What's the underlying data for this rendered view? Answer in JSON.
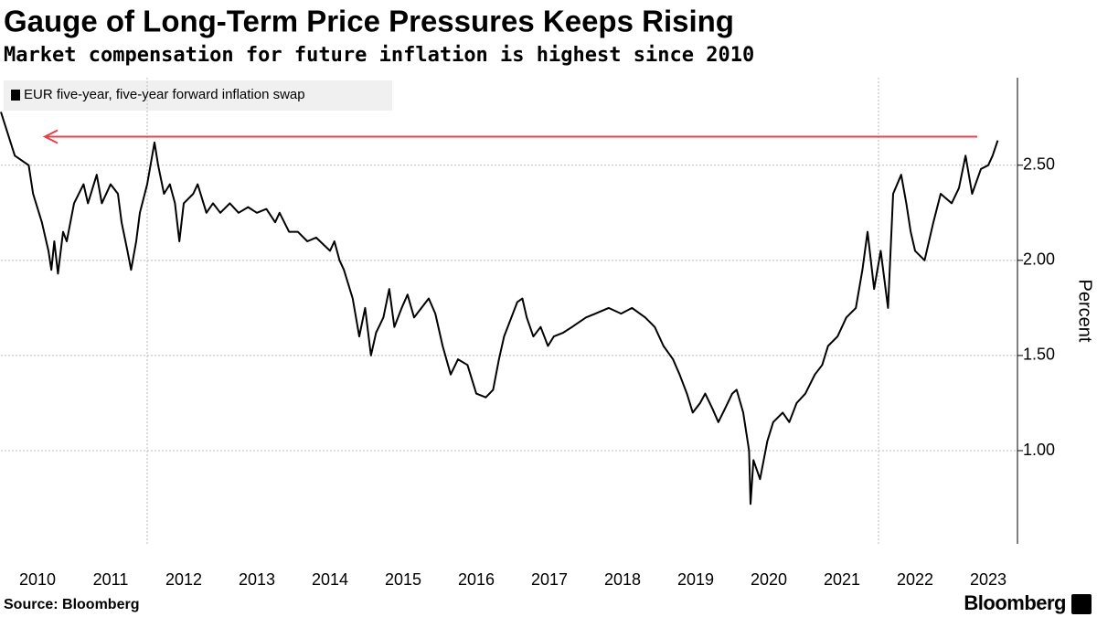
{
  "chart_data": {
    "type": "line",
    "title": "Gauge of Long-Term Price Pressures Keeps Rising",
    "subtitle": "Market compensation for future inflation is highest since 2010",
    "y_axis_label": "Percent",
    "source": "Source: Bloomberg",
    "brand": "Bloomberg",
    "x": [
      2010.0,
      2010.19,
      2010.38,
      2010.44,
      2010.56,
      2010.65,
      2010.69,
      2010.73,
      2010.78,
      2010.85,
      2010.9,
      2011.0,
      2011.13,
      2011.19,
      2011.31,
      2011.38,
      2011.5,
      2011.6,
      2011.65,
      2011.73,
      2011.78,
      2011.85,
      2011.9,
      2012.0,
      2012.1,
      2012.15,
      2012.23,
      2012.31,
      2012.38,
      2012.44,
      2012.5,
      2012.63,
      2012.69,
      2012.81,
      2012.9,
      2013.0,
      2013.13,
      2013.25,
      2013.38,
      2013.5,
      2013.63,
      2013.75,
      2013.81,
      2013.94,
      2014.06,
      2014.19,
      2014.31,
      2014.5,
      2014.56,
      2014.63,
      2014.69,
      2014.81,
      2014.9,
      2014.98,
      2015.06,
      2015.13,
      2015.23,
      2015.31,
      2015.38,
      2015.48,
      2015.56,
      2015.65,
      2015.75,
      2015.85,
      2015.94,
      2016.04,
      2016.15,
      2016.25,
      2016.38,
      2016.5,
      2016.63,
      2016.73,
      2016.81,
      2016.88,
      2016.98,
      2017.06,
      2017.13,
      2017.19,
      2017.28,
      2017.38,
      2017.48,
      2017.56,
      2017.69,
      2017.81,
      2018.0,
      2018.13,
      2018.31,
      2018.48,
      2018.63,
      2018.81,
      2018.94,
      2019.06,
      2019.19,
      2019.28,
      2019.38,
      2019.46,
      2019.56,
      2019.63,
      2019.73,
      2019.81,
      2019.9,
      2020.0,
      2020.06,
      2020.15,
      2020.23,
      2020.25,
      2020.29,
      2020.38,
      2020.48,
      2020.56,
      2020.69,
      2020.78,
      2020.88,
      2021.0,
      2021.13,
      2021.23,
      2021.31,
      2021.44,
      2021.56,
      2021.69,
      2021.78,
      2021.85,
      2021.94,
      2022.03,
      2022.13,
      2022.2,
      2022.31,
      2022.38,
      2022.44,
      2022.5,
      2022.63,
      2022.75,
      2022.85,
      2023.0,
      2023.1,
      2023.19,
      2023.28,
      2023.4,
      2023.5,
      2023.56,
      2023.63
    ],
    "series": [
      {
        "name": "EUR five-year, five-year forward inflation swap",
        "color": "#000000",
        "values": [
          2.78,
          2.55,
          2.5,
          2.35,
          2.2,
          2.05,
          1.95,
          2.1,
          1.93,
          2.15,
          2.1,
          2.3,
          2.4,
          2.3,
          2.45,
          2.3,
          2.4,
          2.35,
          2.2,
          2.05,
          1.95,
          2.1,
          2.25,
          2.4,
          2.62,
          2.5,
          2.35,
          2.4,
          2.3,
          2.1,
          2.3,
          2.35,
          2.4,
          2.25,
          2.3,
          2.25,
          2.3,
          2.25,
          2.28,
          2.25,
          2.27,
          2.2,
          2.25,
          2.15,
          2.15,
          2.1,
          2.12,
          2.05,
          2.1,
          2.0,
          1.95,
          1.8,
          1.6,
          1.75,
          1.5,
          1.62,
          1.7,
          1.85,
          1.65,
          1.75,
          1.82,
          1.7,
          1.75,
          1.8,
          1.72,
          1.55,
          1.4,
          1.48,
          1.45,
          1.3,
          1.28,
          1.32,
          1.48,
          1.6,
          1.7,
          1.78,
          1.8,
          1.7,
          1.6,
          1.65,
          1.55,
          1.6,
          1.62,
          1.65,
          1.7,
          1.72,
          1.75,
          1.72,
          1.75,
          1.7,
          1.65,
          1.55,
          1.48,
          1.4,
          1.3,
          1.2,
          1.25,
          1.3,
          1.22,
          1.15,
          1.22,
          1.3,
          1.32,
          1.2,
          1.0,
          0.72,
          0.95,
          0.85,
          1.05,
          1.15,
          1.2,
          1.15,
          1.25,
          1.3,
          1.4,
          1.45,
          1.55,
          1.6,
          1.7,
          1.75,
          1.95,
          2.15,
          1.85,
          2.05,
          1.75,
          2.35,
          2.45,
          2.3,
          2.15,
          2.05,
          2.0,
          2.2,
          2.35,
          2.3,
          2.38,
          2.55,
          2.35,
          2.48,
          2.5,
          2.55,
          2.63
        ]
      }
    ],
    "xlim": [
      2010,
      2023.9
    ],
    "xticks": [
      {
        "value": 2010.5,
        "label": "2010"
      },
      {
        "value": 2011.5,
        "label": "2011"
      },
      {
        "value": 2012.5,
        "label": "2012"
      },
      {
        "value": 2013.5,
        "label": "2013"
      },
      {
        "value": 2014.5,
        "label": "2014"
      },
      {
        "value": 2015.5,
        "label": "2015"
      },
      {
        "value": 2016.5,
        "label": "2016"
      },
      {
        "value": 2017.5,
        "label": "2017"
      },
      {
        "value": 2018.5,
        "label": "2018"
      },
      {
        "value": 2019.5,
        "label": "2019"
      },
      {
        "value": 2020.5,
        "label": "2020"
      },
      {
        "value": 2021.5,
        "label": "2021"
      },
      {
        "value": 2022.5,
        "label": "2022"
      },
      {
        "value": 2023.5,
        "label": "2023"
      }
    ],
    "x_grid_lines": [
      2012,
      2022
    ],
    "ylim": [
      0.51,
      2.96
    ],
    "yticks": [
      {
        "value": 1,
        "label": "1.00"
      },
      {
        "value": 1.5,
        "label": "1.50"
      },
      {
        "value": 2,
        "label": "2.00"
      },
      {
        "value": 2.5,
        "label": "2.50"
      }
    ],
    "grid": true,
    "legend": "top-left",
    "arrow": {
      "y": 2.65,
      "x_from": 2023.35,
      "x_to": 2010.6,
      "color": "#e8414e"
    }
  }
}
